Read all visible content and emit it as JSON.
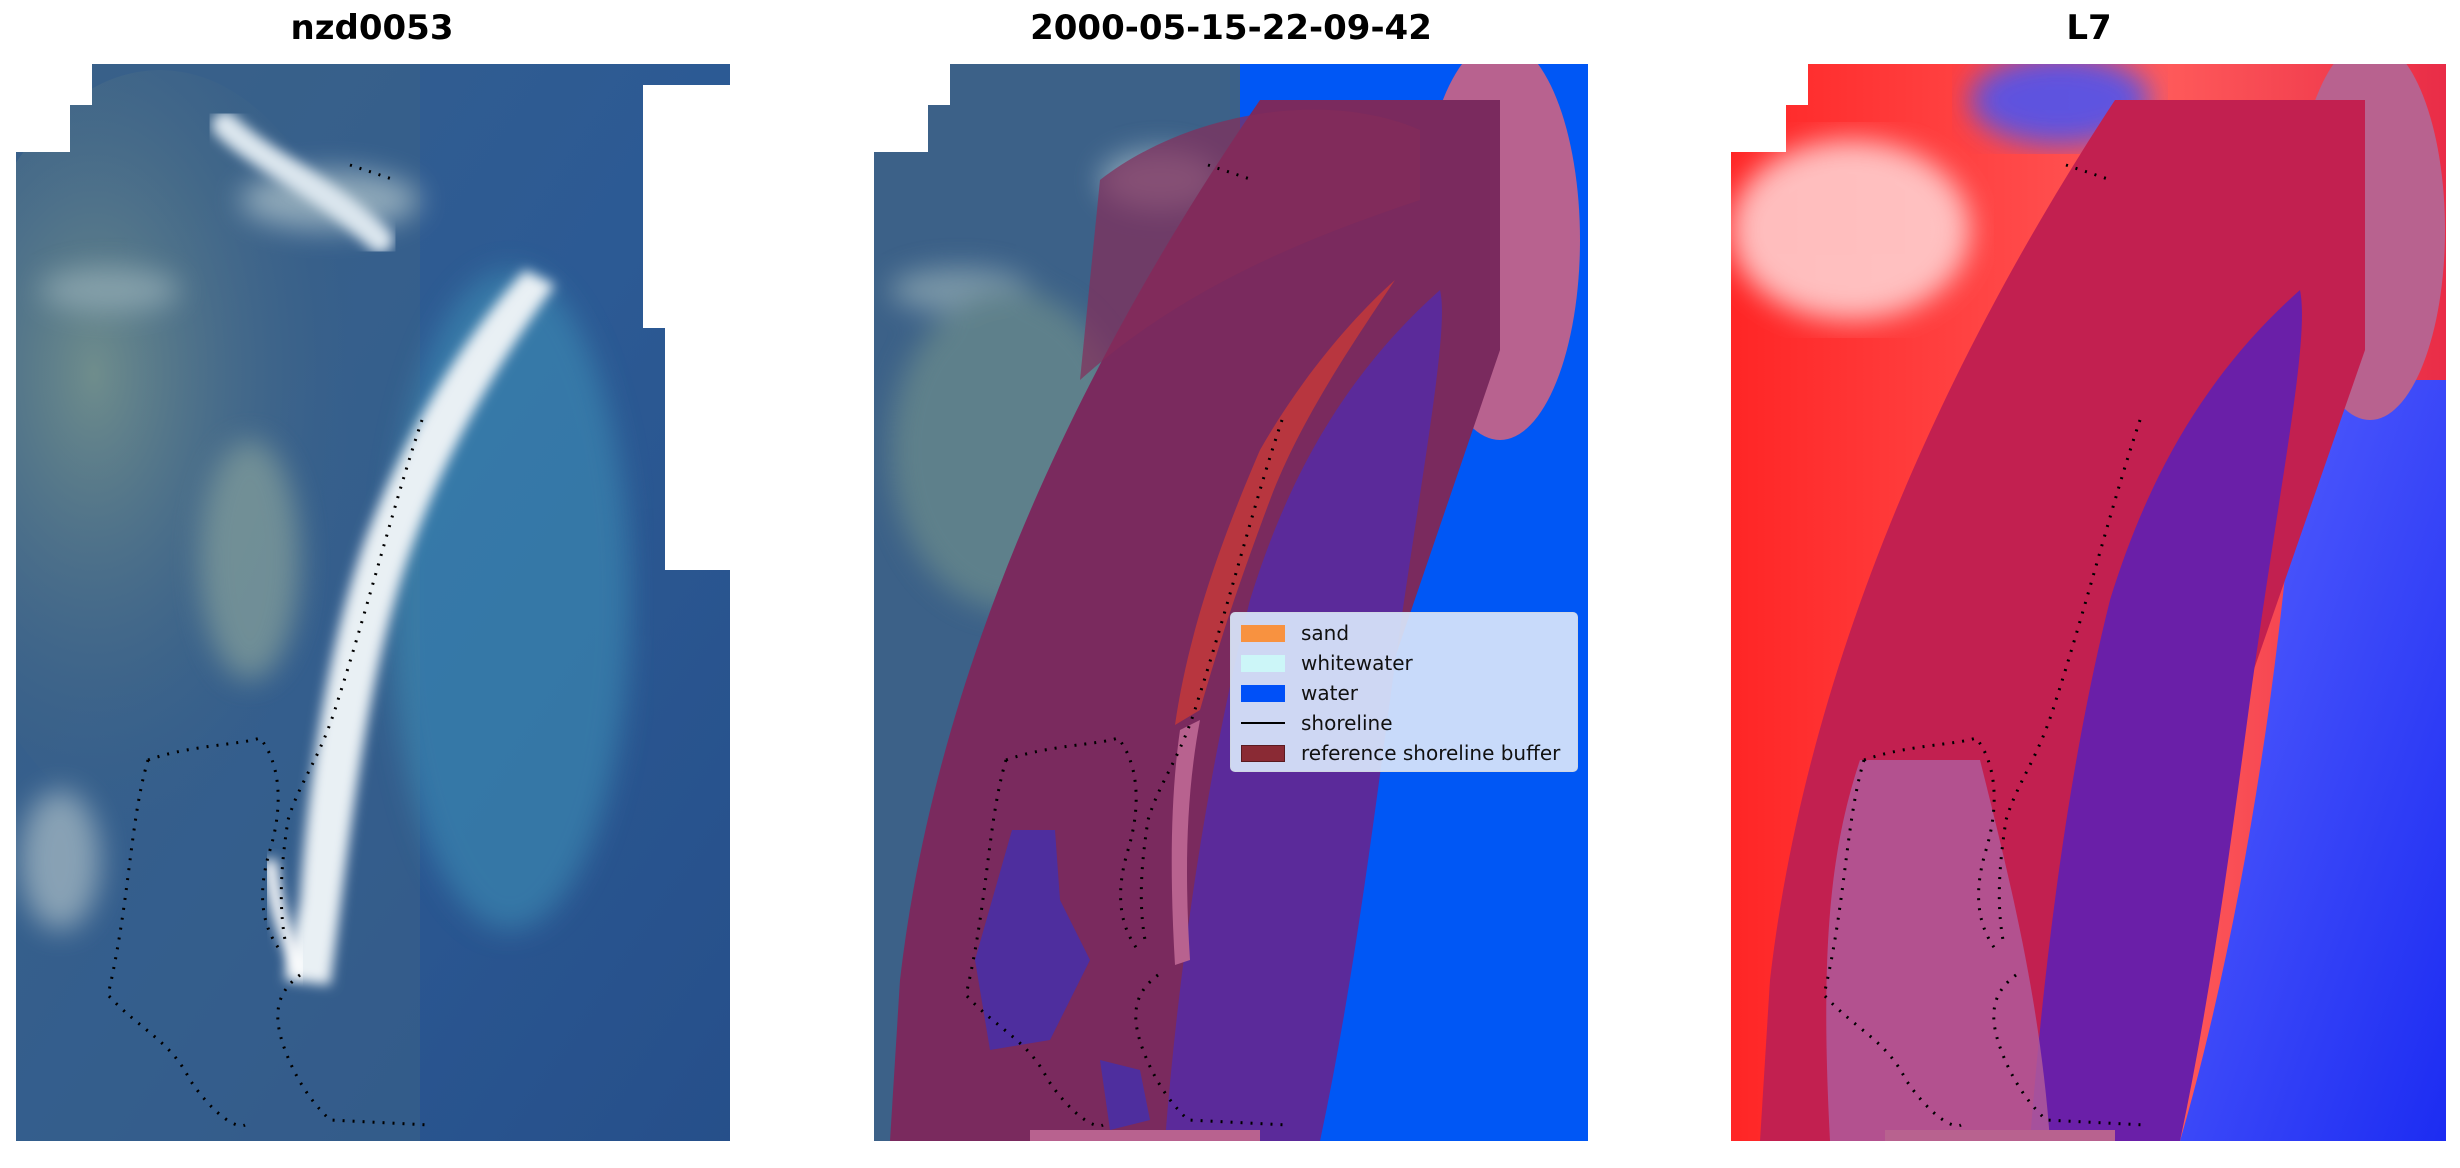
{
  "panels": [
    {
      "title": "nzd0053"
    },
    {
      "title": "2000-05-15-22-09-42"
    },
    {
      "title": "L7"
    }
  ],
  "legend": {
    "items": [
      {
        "label": "sand",
        "color": "#f89240",
        "kind": "patch"
      },
      {
        "label": "whitewater",
        "color": "#ccf6f8",
        "kind": "patch"
      },
      {
        "label": "water",
        "color": "#0050f8",
        "kind": "patch"
      },
      {
        "label": "shoreline",
        "color": "#000000",
        "kind": "line"
      },
      {
        "label": "reference shoreline buffer",
        "color": "#8a2a34",
        "kind": "box"
      }
    ]
  },
  "colors": {
    "ocean_blue": "#2e5a92",
    "water_class": "#0057f5",
    "buffer": "#7c2456",
    "buffer_edge": "#b8628f",
    "sand_strip": "#b8363f",
    "index_red": "#ff2a2a",
    "index_blue": "#2a36ff"
  }
}
